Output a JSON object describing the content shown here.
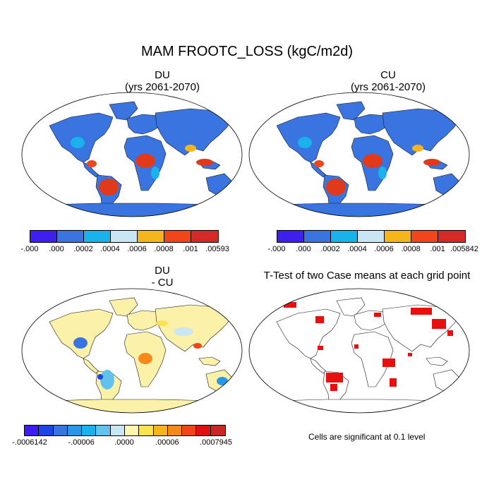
{
  "main_title": "MAM FROOTC_LOSS (kgC/m2d)",
  "panels": [
    {
      "name": "DU",
      "subtitle": "(yrs 2061-2070)"
    },
    {
      "name": "CU",
      "subtitle": "(yrs 2061-2070)"
    },
    {
      "name": "DU",
      "subtitle": "- CU"
    },
    {
      "name": "T-Test of two Case means at each grid point"
    }
  ],
  "colorbars": {
    "du": {
      "labels": [
        "-.000",
        ".000",
        ".0002",
        ".0004",
        ".0006",
        ".0008",
        ".001",
        ".00593"
      ],
      "colors": [
        "#3d1ff0",
        "#3a74e0",
        "#1ab2ec",
        "#c8e6f4",
        "#f6b51d",
        "#f1461a",
        "#d42a2a"
      ]
    },
    "cu": {
      "labels": [
        "-.000",
        ".000",
        ".0002",
        ".0004",
        ".0006",
        ".0008",
        ".001",
        ".005842"
      ],
      "colors": [
        "#3d1ff0",
        "#3a74e0",
        "#1ab2ec",
        "#c8e6f4",
        "#f6b51d",
        "#f1461a",
        "#d42a2a"
      ]
    },
    "diff": {
      "labels": [
        "-.0006142",
        "-.00006",
        ".0000",
        ".00006",
        ".0007945"
      ],
      "colors": [
        "#3b1ff0",
        "#1f44e6",
        "#3a74e0",
        "#2a96e6",
        "#1ab2ec",
        "#62c2ee",
        "#c8e6f4",
        "#fff7b0",
        "#fde34e",
        "#f6b51d",
        "#f58a1b",
        "#f1461a",
        "#e01010",
        "#c62828"
      ]
    }
  },
  "footnote": "Cells are significant at 0.1 level",
  "map_colors": {
    "ocean": "#ffffff",
    "land_du": "#3a74e0",
    "tropics_du": "#e03a1a",
    "land_diff": "#fbf1a8",
    "ttest_sig": "#e80f0f"
  }
}
